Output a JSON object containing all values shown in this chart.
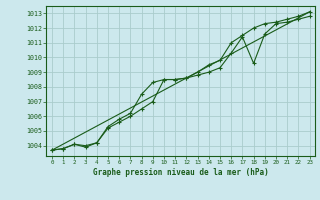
{
  "xlabel": "Graphe pression niveau de la mer (hPa)",
  "bg_color": "#cce8ed",
  "grid_color": "#aacccc",
  "line_color": "#1a5c1a",
  "xlim": [
    -0.5,
    23.5
  ],
  "ylim": [
    1003.3,
    1013.5
  ],
  "yticks": [
    1004,
    1005,
    1006,
    1007,
    1008,
    1009,
    1010,
    1011,
    1012,
    1013
  ],
  "xticks": [
    0,
    1,
    2,
    3,
    4,
    5,
    6,
    7,
    8,
    9,
    10,
    11,
    12,
    13,
    14,
    15,
    16,
    17,
    18,
    19,
    20,
    21,
    22,
    23
  ],
  "series1_x": [
    0,
    1,
    2,
    3,
    4,
    5,
    6,
    7,
    8,
    9,
    10,
    11,
    12,
    13,
    14,
    15,
    16,
    17,
    18,
    19,
    20,
    21,
    22,
    23
  ],
  "series1_y": [
    1003.7,
    1003.8,
    1004.1,
    1003.9,
    1004.2,
    1005.3,
    1005.8,
    1006.2,
    1007.5,
    1008.3,
    1008.5,
    1008.5,
    1008.6,
    1008.8,
    1009.0,
    1009.3,
    1010.3,
    1011.4,
    1009.6,
    1011.6,
    1012.3,
    1012.4,
    1012.6,
    1012.8
  ],
  "series2_x": [
    0,
    1,
    2,
    3,
    4,
    5,
    6,
    7,
    8,
    9,
    10,
    11,
    12,
    13,
    14,
    15,
    16,
    17,
    18,
    19,
    20,
    21,
    22,
    23
  ],
  "series2_y": [
    1003.7,
    1003.8,
    1004.1,
    1004.0,
    1004.2,
    1005.2,
    1005.6,
    1006.0,
    1006.5,
    1007.0,
    1008.5,
    1008.5,
    1008.6,
    1009.0,
    1009.5,
    1009.8,
    1011.0,
    1011.5,
    1012.0,
    1012.3,
    1012.4,
    1012.6,
    1012.8,
    1013.1
  ],
  "trend_x": [
    0,
    23
  ],
  "trend_y": [
    1003.7,
    1013.1
  ]
}
